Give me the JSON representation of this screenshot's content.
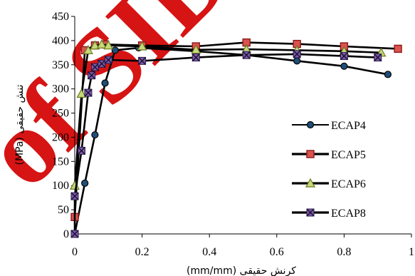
{
  "watermark": "of SID",
  "chart_data": {
    "type": "line",
    "title": "",
    "xlabel": "(mm/mm) کرنش حقیقی",
    "ylabel": "(MPa) تنش حقیقی",
    "xlim": [
      0,
      1
    ],
    "ylim": [
      0,
      450
    ],
    "x_ticks": [
      "0",
      "0.2",
      "0.4",
      "0.6",
      "0.8",
      "1"
    ],
    "y_ticks": [
      "0",
      "50",
      "100",
      "150",
      "200",
      "250",
      "300",
      "350",
      "400",
      "450"
    ],
    "grid": false,
    "legend_position": "right",
    "series": [
      {
        "name": "ECAP4",
        "marker": "circle",
        "marker_color": "#1f4e79",
        "points": [
          [
            0,
            0
          ],
          [
            0.03,
            105
          ],
          [
            0.06,
            205
          ],
          [
            0.09,
            312
          ],
          [
            0.12,
            380
          ],
          [
            0.19,
            385
          ],
          [
            0.36,
            378
          ],
          [
            0.51,
            370
          ],
          [
            0.66,
            358
          ],
          [
            0.8,
            347
          ],
          [
            0.93,
            330
          ]
        ]
      },
      {
        "name": "ECAP5",
        "marker": "square",
        "marker_color": "#d9534f",
        "points": [
          [
            0,
            35
          ],
          [
            0.03,
            380
          ],
          [
            0.06,
            390
          ],
          [
            0.09,
            392
          ],
          [
            0.2,
            390
          ],
          [
            0.36,
            388
          ],
          [
            0.51,
            396
          ],
          [
            0.66,
            393
          ],
          [
            0.8,
            388
          ],
          [
            0.96,
            383
          ]
        ]
      },
      {
        "name": "ECAP6",
        "marker": "triangle",
        "marker_color": "#c5d87a",
        "points": [
          [
            0,
            100
          ],
          [
            0.02,
            290
          ],
          [
            0.04,
            380
          ],
          [
            0.06,
            390
          ],
          [
            0.08,
            392
          ],
          [
            0.1,
            390
          ],
          [
            0.2,
            388
          ],
          [
            0.36,
            381
          ],
          [
            0.51,
            382
          ],
          [
            0.66,
            380
          ],
          [
            0.8,
            378
          ],
          [
            0.91,
            375
          ]
        ]
      },
      {
        "name": "ECAP8",
        "marker": "x-square",
        "marker_color": "#7d5ba6",
        "points": [
          [
            0,
            0
          ],
          [
            0,
            78
          ],
          [
            0.02,
            172
          ],
          [
            0.04,
            292
          ],
          [
            0.05,
            328
          ],
          [
            0.06,
            345
          ],
          [
            0.08,
            352
          ],
          [
            0.1,
            360
          ],
          [
            0.2,
            358
          ],
          [
            0.36,
            365
          ],
          [
            0.51,
            370
          ],
          [
            0.66,
            372
          ],
          [
            0.8,
            368
          ],
          [
            0.9,
            365
          ]
        ]
      }
    ]
  }
}
